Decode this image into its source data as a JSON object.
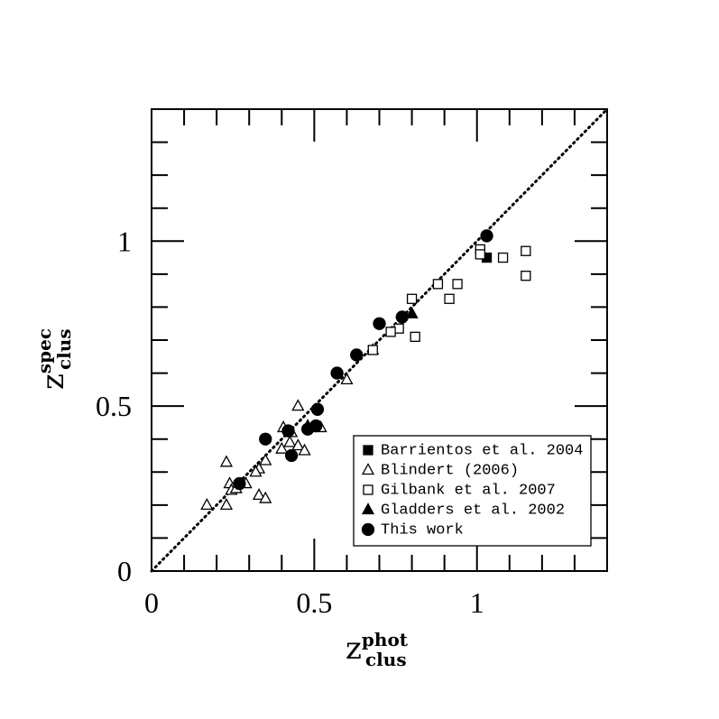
{
  "chart_data": {
    "type": "scatter",
    "xlabel": {
      "base": "z",
      "sup": "phot",
      "sub": "clus"
    },
    "ylabel": {
      "base": "z",
      "sup": "spec",
      "sub": "clus"
    },
    "xlim": [
      0,
      1.4
    ],
    "ylim": [
      0,
      1.4
    ],
    "xticks": [
      0,
      0.5,
      1
    ],
    "yticks": [
      0,
      0.5,
      1
    ],
    "minor_ticks": [
      0.1,
      0.2,
      0.3,
      0.4,
      0.6,
      0.7,
      0.8,
      0.9,
      1.1,
      1.2,
      1.3
    ],
    "legend_position": "lower right",
    "series": [
      {
        "name": "Barrientos et al. 2004",
        "color": "#000000",
        "marker": "square",
        "filled": true,
        "x": [
          1.03
        ],
        "y": [
          0.95
        ]
      },
      {
        "name": "Blindert (2006)",
        "color": "#000000",
        "marker": "triangle",
        "filled": false,
        "x": [
          0.68,
          0.6,
          0.45,
          0.52,
          0.405,
          0.43,
          0.425,
          0.45,
          0.47,
          0.4,
          0.35,
          0.33,
          0.32,
          0.23,
          0.24,
          0.29,
          0.245,
          0.33,
          0.35,
          0.23,
          0.17,
          0.26
        ],
        "y": [
          0.67,
          0.58,
          0.5,
          0.435,
          0.435,
          0.42,
          0.39,
          0.38,
          0.365,
          0.37,
          0.335,
          0.31,
          0.3,
          0.33,
          0.265,
          0.265,
          0.245,
          0.23,
          0.22,
          0.2,
          0.2,
          0.25
        ]
      },
      {
        "name": "Gilbank et al. 2007",
        "color": "#000000",
        "marker": "square",
        "filled": false,
        "x": [
          1.01,
          1.01,
          1.08,
          1.15,
          1.15,
          0.88,
          0.94,
          0.8,
          0.915,
          0.81,
          0.76,
          0.735,
          0.68
        ],
        "y": [
          0.975,
          0.96,
          0.95,
          0.97,
          0.895,
          0.87,
          0.87,
          0.825,
          0.825,
          0.71,
          0.735,
          0.725,
          0.67
        ]
      },
      {
        "name": "Gladders et al. 2002",
        "color": "#000000",
        "marker": "triangle",
        "filled": true,
        "x": [
          0.8,
          0.48
        ],
        "y": [
          0.78,
          0.44
        ]
      },
      {
        "name": "This work",
        "color": "#000000",
        "marker": "circle",
        "filled": true,
        "x": [
          1.03,
          0.77,
          0.7,
          0.63,
          0.57,
          0.51,
          0.505,
          0.48,
          0.42,
          0.43,
          0.35,
          0.27
        ],
        "y": [
          1.016,
          0.77,
          0.75,
          0.655,
          0.6,
          0.49,
          0.44,
          0.43,
          0.425,
          0.35,
          0.4,
          0.265
        ]
      }
    ]
  }
}
